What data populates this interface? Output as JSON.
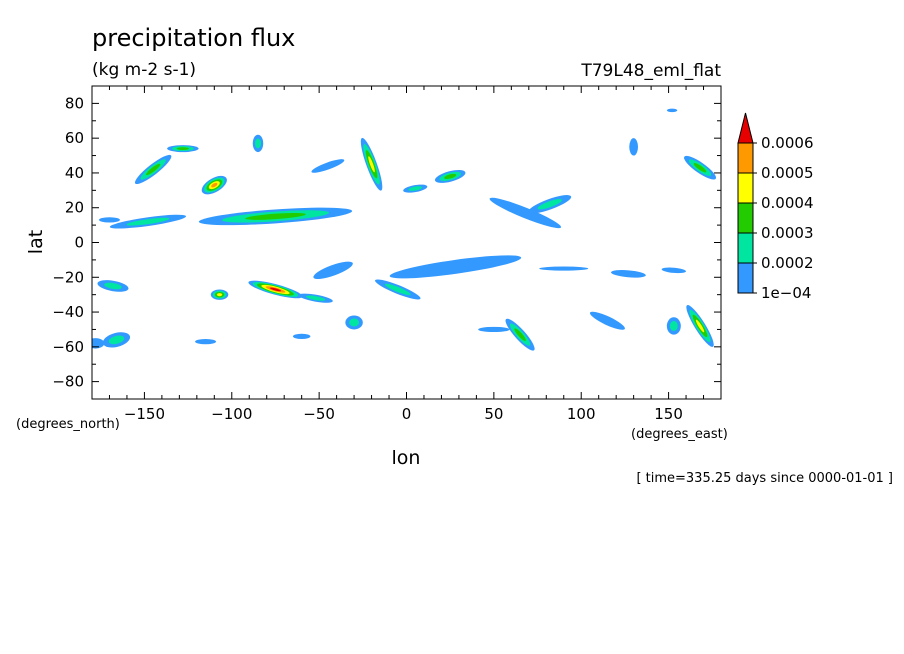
{
  "chart_data": {
    "type": "contour",
    "title": "precipitation flux",
    "units": "(kg m-2 s-1)",
    "run_label": "T79L48_eml_flat",
    "xlabel": "lon",
    "ylabel": "lat",
    "x_units": "(degrees_east)",
    "y_units": "(degrees_north)",
    "time_label": "[ time=335.25 days since 0000-01-01 ]",
    "xlim": [
      -180,
      180
    ],
    "ylim": [
      -90,
      90
    ],
    "x_ticks": [
      -150,
      -100,
      -50,
      0,
      50,
      100,
      150
    ],
    "y_ticks": [
      80,
      60,
      40,
      20,
      0,
      -20,
      -40,
      -60,
      -80
    ],
    "levels": [
      0.0001,
      0.0002,
      0.0003,
      0.0004,
      0.0005,
      0.0006
    ],
    "level_labels": [
      "1e-04",
      "0.0002",
      "0.0003",
      "0.0004",
      "0.0005",
      "0.0006"
    ],
    "colors": [
      "#3399ff",
      "#00e6a0",
      "#22cc00",
      "#ffff00",
      "#ff9900",
      "#e60000"
    ],
    "blobs": [
      {
        "lon": -75,
        "lat": 15,
        "rx": 44,
        "ry": 4,
        "rot": 4,
        "level": 2
      },
      {
        "lon": -148,
        "lat": 12,
        "rx": 22,
        "ry": 2.5,
        "rot": 8,
        "level": 1
      },
      {
        "lon": -170,
        "lat": 13,
        "rx": 6,
        "ry": 1.5,
        "rot": 0,
        "level": 0
      },
      {
        "lon": -128,
        "lat": 54,
        "rx": 9,
        "ry": 2,
        "rot": 0,
        "level": 2
      },
      {
        "lon": -145,
        "lat": 42,
        "rx": 13,
        "ry": 3,
        "rot": 38,
        "level": 2
      },
      {
        "lon": -110,
        "lat": 33,
        "rx": 8,
        "ry": 4,
        "rot": 30,
        "level": 4
      },
      {
        "lon": -85,
        "lat": 57,
        "rx": 3,
        "ry": 5,
        "rot": 0,
        "level": 1
      },
      {
        "lon": -20,
        "lat": 45,
        "rx": 16,
        "ry": 3,
        "rot": -70,
        "level": 3
      },
      {
        "lon": -45,
        "lat": 44,
        "rx": 10,
        "ry": 2,
        "rot": 20,
        "level": 0
      },
      {
        "lon": 25,
        "lat": 38,
        "rx": 9,
        "ry": 3,
        "rot": 15,
        "level": 2
      },
      {
        "lon": 5,
        "lat": 31,
        "rx": 7,
        "ry": 2,
        "rot": 10,
        "level": 1
      },
      {
        "lon": 68,
        "lat": 17,
        "rx": 22,
        "ry": 3,
        "rot": -22,
        "level": 0
      },
      {
        "lon": 82,
        "lat": 22,
        "rx": 13,
        "ry": 3,
        "rot": 20,
        "level": 1
      },
      {
        "lon": 130,
        "lat": 55,
        "rx": 2.5,
        "ry": 5,
        "rot": 0,
        "level": 0
      },
      {
        "lon": 168,
        "lat": 43,
        "rx": 11,
        "ry": 3,
        "rot": -35,
        "level": 2
      },
      {
        "lon": 152,
        "lat": 76,
        "rx": 3,
        "ry": 1,
        "rot": 0,
        "level": 0
      },
      {
        "lon": -168,
        "lat": -25,
        "rx": 9,
        "ry": 3,
        "rot": -10,
        "level": 1
      },
      {
        "lon": -75,
        "lat": -27,
        "rx": 16,
        "ry": 3,
        "rot": -15,
        "level": 5
      },
      {
        "lon": -52,
        "lat": -32,
        "rx": 10,
        "ry": 2,
        "rot": -10,
        "level": 1
      },
      {
        "lon": -107,
        "lat": -30,
        "rx": 5,
        "ry": 3,
        "rot": 0,
        "level": 3
      },
      {
        "lon": -42,
        "lat": -16,
        "rx": 12,
        "ry": 3,
        "rot": 20,
        "level": 0
      },
      {
        "lon": 28,
        "lat": -14,
        "rx": 38,
        "ry": 4,
        "rot": 8,
        "level": 0
      },
      {
        "lon": -5,
        "lat": -27,
        "rx": 14,
        "ry": 2.5,
        "rot": -22,
        "level": 1
      },
      {
        "lon": -30,
        "lat": -46,
        "rx": 5,
        "ry": 4,
        "rot": 0,
        "level": 1
      },
      {
        "lon": -60,
        "lat": -54,
        "rx": 5,
        "ry": 1.5,
        "rot": 0,
        "level": 0
      },
      {
        "lon": -115,
        "lat": -57,
        "rx": 6,
        "ry": 1.5,
        "rot": 0,
        "level": 0
      },
      {
        "lon": -166,
        "lat": -56,
        "rx": 8,
        "ry": 4,
        "rot": 15,
        "level": 1
      },
      {
        "lon": -178,
        "lat": -58,
        "rx": 5,
        "ry": 3,
        "rot": 0,
        "level": 0
      },
      {
        "lon": 65,
        "lat": -53,
        "rx": 12,
        "ry": 3,
        "rot": -48,
        "level": 2
      },
      {
        "lon": 50,
        "lat": -50,
        "rx": 9,
        "ry": 1.5,
        "rot": 0,
        "level": 0
      },
      {
        "lon": 115,
        "lat": -45,
        "rx": 11,
        "ry": 2.5,
        "rot": -25,
        "level": 0
      },
      {
        "lon": 168,
        "lat": -48,
        "rx": 14,
        "ry": 3,
        "rot": -58,
        "level": 3
      },
      {
        "lon": 153,
        "lat": -48,
        "rx": 4,
        "ry": 5,
        "rot": 0,
        "level": 1
      },
      {
        "lon": 90,
        "lat": -15,
        "rx": 14,
        "ry": 1.2,
        "rot": 0,
        "level": 0
      },
      {
        "lon": 127,
        "lat": -18,
        "rx": 10,
        "ry": 2,
        "rot": -5,
        "level": 0
      },
      {
        "lon": 153,
        "lat": -16,
        "rx": 7,
        "ry": 1.5,
        "rot": -5,
        "level": 0
      }
    ]
  }
}
